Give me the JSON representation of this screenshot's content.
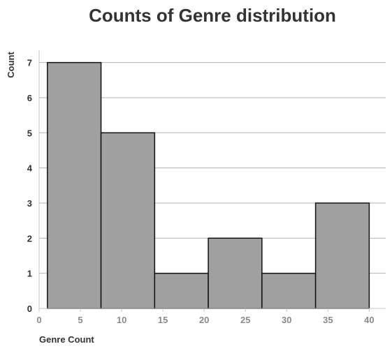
{
  "chart_data": {
    "type": "bar",
    "title": "Counts of Genre distribution",
    "xlabel": "Genre Count",
    "ylabel": "Count",
    "bins": [
      {
        "start": 1,
        "end": 7.5,
        "count": 7
      },
      {
        "start": 7.5,
        "end": 14,
        "count": 5
      },
      {
        "start": 14,
        "end": 20.5,
        "count": 1
      },
      {
        "start": 20.5,
        "end": 27,
        "count": 2
      },
      {
        "start": 27,
        "end": 33.5,
        "count": 1
      },
      {
        "start": 33.5,
        "end": 40,
        "count": 3
      }
    ],
    "xlim": [
      0,
      42
    ],
    "ylim": [
      0,
      7.35
    ],
    "x_ticks": [
      "0",
      "5",
      "10",
      "15",
      "20",
      "25",
      "30",
      "35",
      "40"
    ],
    "y_ticks": [
      "0",
      "1",
      "2",
      "3",
      "4",
      "5",
      "6",
      "7"
    ],
    "grid": true,
    "bar_color": "#a0a0a0",
    "bar_edge_color": "#111111"
  }
}
